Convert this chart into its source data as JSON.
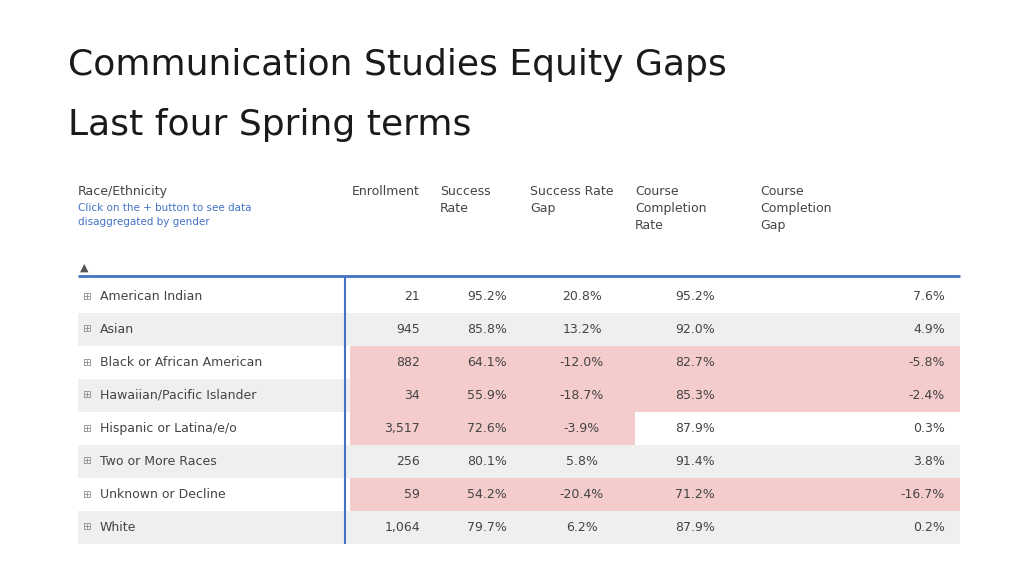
{
  "title_line1": "Communication Studies Equity Gaps",
  "title_line2": "Last four Spring terms",
  "title_fontsize": 26,
  "subtitle": "Click on the + button to see data\ndisaggregated by gender",
  "subtitle_color": "#4472C4",
  "rows": [
    {
      "label": "American Indian",
      "enrollment": "21",
      "success_rate": "95.2%",
      "success_gap": "20.8%",
      "completion_rate": "95.2%",
      "completion_gap": "7.6%",
      "neg_success": false,
      "neg_completion": false
    },
    {
      "label": "Asian",
      "enrollment": "945",
      "success_rate": "85.8%",
      "success_gap": "13.2%",
      "completion_rate": "92.0%",
      "completion_gap": "4.9%",
      "neg_success": false,
      "neg_completion": false
    },
    {
      "label": "Black or African American",
      "enrollment": "882",
      "success_rate": "64.1%",
      "success_gap": "-12.0%",
      "completion_rate": "82.7%",
      "completion_gap": "-5.8%",
      "neg_success": true,
      "neg_completion": true
    },
    {
      "label": "Hawaiian/Pacific Islander",
      "enrollment": "34",
      "success_rate": "55.9%",
      "success_gap": "-18.7%",
      "completion_rate": "85.3%",
      "completion_gap": "-2.4%",
      "neg_success": true,
      "neg_completion": true
    },
    {
      "label": "Hispanic or Latina/e/o",
      "enrollment": "3,517",
      "success_rate": "72.6%",
      "success_gap": "-3.9%",
      "completion_rate": "87.9%",
      "completion_gap": "0.3%",
      "neg_success": true,
      "neg_completion": false
    },
    {
      "label": "Two or More Races",
      "enrollment": "256",
      "success_rate": "80.1%",
      "success_gap": "5.8%",
      "completion_rate": "91.4%",
      "completion_gap": "3.8%",
      "neg_success": false,
      "neg_completion": false
    },
    {
      "label": "Unknown or Decline",
      "enrollment": "59",
      "success_rate": "54.2%",
      "success_gap": "-20.4%",
      "completion_rate": "71.2%",
      "completion_gap": "-16.7%",
      "neg_success": true,
      "neg_completion": true
    },
    {
      "label": "White",
      "enrollment": "1,064",
      "success_rate": "79.7%",
      "success_gap": "6.2%",
      "completion_rate": "87.9%",
      "completion_gap": "0.2%",
      "neg_success": false,
      "neg_completion": false
    }
  ],
  "negative_color": "#F4CCCC",
  "row_alt_color": "#EFEFEF",
  "row_white_color": "#FFFFFF",
  "header_line_color": "#4472C4",
  "text_color": "#444444",
  "background_color": "#FFFFFF",
  "fig_width": 10.24,
  "fig_height": 5.76,
  "dpi": 100
}
